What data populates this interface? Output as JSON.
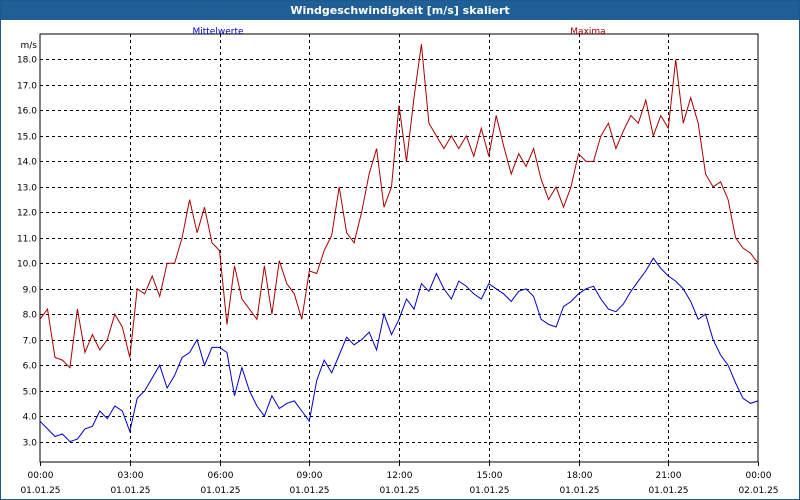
{
  "window": {
    "title": "Windgeschwindigkeit [m/s] skaliert"
  },
  "chart_data": {
    "type": "line",
    "title": "Windgeschwindigkeit [m/s] skaliert",
    "ylabel": "m/s",
    "xlabel": "",
    "ylim": [
      2.2,
      19.0
    ],
    "y_ticks": [
      "3.0",
      "4.0",
      "5.0",
      "6.0",
      "7.0",
      "8.0",
      "9.0",
      "10.0",
      "11.0",
      "12.0",
      "13.0",
      "14.0",
      "15.0",
      "16.0",
      "17.0",
      "18.0"
    ],
    "y_tick_values": [
      3,
      4,
      5,
      6,
      7,
      8,
      9,
      10,
      11,
      12,
      13,
      14,
      15,
      16,
      17,
      18
    ],
    "x_range_hours": [
      0,
      24
    ],
    "x_ticks": [
      {
        "time": "00:00",
        "date": "01.01.25",
        "hours": 0
      },
      {
        "time": "03:00",
        "date": "01.01.25",
        "hours": 3
      },
      {
        "time": "06:00",
        "date": "01.01.25",
        "hours": 6
      },
      {
        "time": "09:00",
        "date": "01.01.25",
        "hours": 9
      },
      {
        "time": "12:00",
        "date": "01.01.25",
        "hours": 12
      },
      {
        "time": "15:00",
        "date": "01.01.25",
        "hours": 15
      },
      {
        "time": "18:00",
        "date": "01.01.25",
        "hours": 18
      },
      {
        "time": "21:00",
        "date": "01.01.25",
        "hours": 21
      },
      {
        "time": "00:00",
        "date": "02.01.25",
        "hours": 24
      }
    ],
    "grid": true,
    "series": [
      {
        "name": "Mittelwerte",
        "color": "#0000cc",
        "x": [
          0,
          0.25,
          0.5,
          0.75,
          1,
          1.25,
          1.5,
          1.75,
          2,
          2.25,
          2.5,
          2.75,
          3,
          3.25,
          3.5,
          3.75,
          4,
          4.25,
          4.5,
          4.75,
          5,
          5.25,
          5.5,
          5.75,
          6,
          6.25,
          6.5,
          6.75,
          7,
          7.25,
          7.5,
          7.75,
          8,
          8.25,
          8.5,
          8.75,
          9,
          9.25,
          9.5,
          9.75,
          10,
          10.25,
          10.5,
          10.75,
          11,
          11.25,
          11.5,
          11.75,
          12,
          12.25,
          12.5,
          12.75,
          13,
          13.25,
          13.5,
          13.75,
          14,
          14.25,
          14.5,
          14.75,
          15,
          15.25,
          15.5,
          15.75,
          16,
          16.25,
          16.5,
          16.75,
          17,
          17.25,
          17.5,
          17.75,
          18,
          18.25,
          18.5,
          18.75,
          19,
          19.25,
          19.5,
          19.75,
          20,
          20.25,
          20.5,
          20.75,
          21,
          21.25,
          21.5,
          21.75,
          22,
          22.25,
          22.5,
          22.75,
          23,
          23.25,
          23.5,
          23.75,
          24
        ],
        "values": [
          3.8,
          3.5,
          3.2,
          3.3,
          3.0,
          3.1,
          3.5,
          3.6,
          4.2,
          3.9,
          4.4,
          4.2,
          3.4,
          4.7,
          5.0,
          5.5,
          6.0,
          5.1,
          5.6,
          6.3,
          6.5,
          7.0,
          6.0,
          6.7,
          6.7,
          6.5,
          4.8,
          5.9,
          5.0,
          4.4,
          4.0,
          4.8,
          4.3,
          4.5,
          4.6,
          4.2,
          3.8,
          5.4,
          6.2,
          5.7,
          6.4,
          7.1,
          6.8,
          7.0,
          7.3,
          6.6,
          8.0,
          7.2,
          7.8,
          8.6,
          8.2,
          9.2,
          8.9,
          9.6,
          9.0,
          8.6,
          9.3,
          9.1,
          8.8,
          8.6,
          9.2,
          9.0,
          8.8,
          8.5,
          8.9,
          9.0,
          8.7,
          7.8,
          7.6,
          7.5,
          8.3,
          8.5,
          8.8,
          9.0,
          9.1,
          8.6,
          8.2,
          8.1,
          8.4,
          8.9,
          9.3,
          9.7,
          10.2,
          9.8,
          9.5,
          9.3,
          9.0,
          8.5,
          7.8,
          8.0,
          7.0,
          6.4,
          6.0,
          5.3,
          4.7,
          4.5,
          4.6
        ]
      },
      {
        "name": "Maxima",
        "color": "#aa0000",
        "x": [
          0,
          0.25,
          0.5,
          0.75,
          1,
          1.25,
          1.5,
          1.75,
          2,
          2.25,
          2.5,
          2.75,
          3,
          3.25,
          3.5,
          3.75,
          4,
          4.25,
          4.5,
          4.75,
          5,
          5.25,
          5.5,
          5.75,
          6,
          6.25,
          6.5,
          6.75,
          7,
          7.25,
          7.5,
          7.75,
          8,
          8.25,
          8.5,
          8.75,
          9,
          9.25,
          9.5,
          9.75,
          10,
          10.25,
          10.5,
          10.75,
          11,
          11.25,
          11.5,
          11.75,
          12,
          12.25,
          12.5,
          12.75,
          13,
          13.25,
          13.5,
          13.75,
          14,
          14.25,
          14.5,
          14.75,
          15,
          15.25,
          15.5,
          15.75,
          16,
          16.25,
          16.5,
          16.75,
          17,
          17.25,
          17.5,
          17.75,
          18,
          18.25,
          18.5,
          18.75,
          19,
          19.25,
          19.5,
          19.75,
          20,
          20.25,
          20.5,
          20.75,
          21,
          21.25,
          21.5,
          21.75,
          22,
          22.25,
          22.5,
          22.75,
          23,
          23.25,
          23.5,
          23.75,
          24
        ],
        "values": [
          7.8,
          8.2,
          6.3,
          6.2,
          5.9,
          8.2,
          6.5,
          7.2,
          6.6,
          7.0,
          8.0,
          7.5,
          6.3,
          9.0,
          8.8,
          9.5,
          8.7,
          10.0,
          10.0,
          11.0,
          12.5,
          11.2,
          12.2,
          10.8,
          10.5,
          7.6,
          9.9,
          8.6,
          8.2,
          7.8,
          9.9,
          8.0,
          10.1,
          9.2,
          8.8,
          7.8,
          9.7,
          9.6,
          10.5,
          11.1,
          13.0,
          11.2,
          10.8,
          12.0,
          13.5,
          14.5,
          12.2,
          13.0,
          16.2,
          14.0,
          16.5,
          18.6,
          15.5,
          15.0,
          14.5,
          15.0,
          14.5,
          15.0,
          14.2,
          15.3,
          14.2,
          15.8,
          14.6,
          13.5,
          14.3,
          13.8,
          14.5,
          13.3,
          12.5,
          13.0,
          12.2,
          13.0,
          14.3,
          14.0,
          14.0,
          15.0,
          15.5,
          14.5,
          15.2,
          15.8,
          15.5,
          16.4,
          15.0,
          15.8,
          15.3,
          18.0,
          15.5,
          16.5,
          15.5,
          13.5,
          13.0,
          13.2,
          12.5,
          11.0,
          10.6,
          10.4,
          10.0
        ]
      }
    ]
  }
}
